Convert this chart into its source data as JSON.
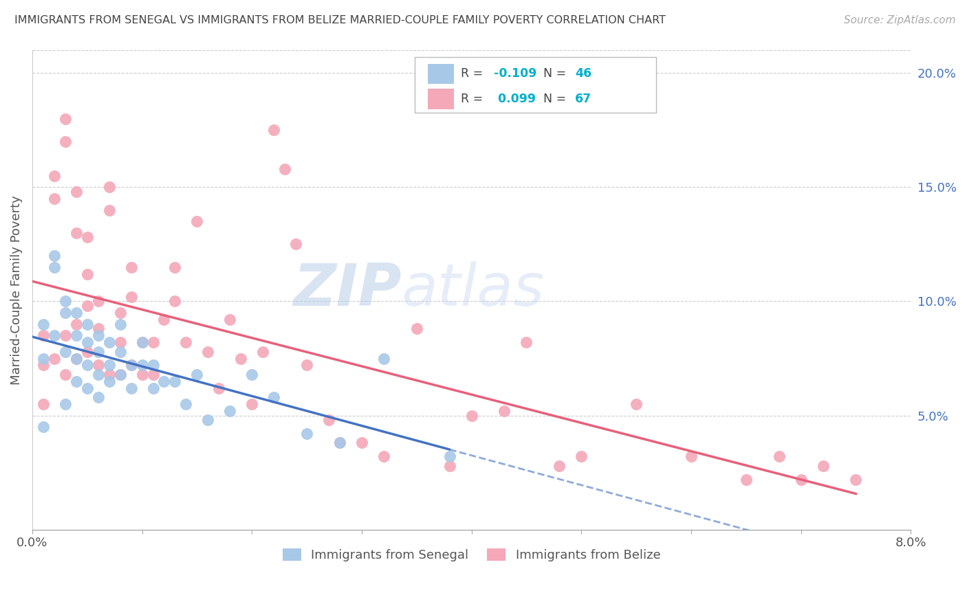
{
  "title": "IMMIGRANTS FROM SENEGAL VS IMMIGRANTS FROM BELIZE MARRIED-COUPLE FAMILY POVERTY CORRELATION CHART",
  "source": "Source: ZipAtlas.com",
  "ylabel": "Married-Couple Family Poverty",
  "xlim": [
    0.0,
    0.08
  ],
  "ylim": [
    0.0,
    0.21
  ],
  "senegal_color": "#a8c8e8",
  "belize_color": "#f4a8b8",
  "senegal_line_color": "#4472c4",
  "belize_line_color": "#e8607a",
  "right_tick_color": "#4472c4",
  "watermark_text": "ZIPatlas",
  "watermark_color": "#ccdcf0",
  "legend_R_color": "#00b0cc",
  "legend_N_color": "#00b0cc",
  "senegal_R": -0.109,
  "senegal_N": 46,
  "belize_R": 0.099,
  "belize_N": 67,
  "senegal_x": [
    0.001,
    0.001,
    0.001,
    0.002,
    0.002,
    0.002,
    0.003,
    0.003,
    0.003,
    0.003,
    0.004,
    0.004,
    0.004,
    0.004,
    0.005,
    0.005,
    0.005,
    0.005,
    0.006,
    0.006,
    0.006,
    0.006,
    0.007,
    0.007,
    0.007,
    0.008,
    0.008,
    0.008,
    0.009,
    0.009,
    0.01,
    0.01,
    0.011,
    0.011,
    0.012,
    0.013,
    0.014,
    0.015,
    0.016,
    0.018,
    0.02,
    0.022,
    0.025,
    0.028,
    0.032,
    0.038
  ],
  "senegal_y": [
    0.09,
    0.075,
    0.045,
    0.12,
    0.115,
    0.085,
    0.1,
    0.095,
    0.078,
    0.055,
    0.095,
    0.085,
    0.075,
    0.065,
    0.09,
    0.082,
    0.072,
    0.062,
    0.085,
    0.078,
    0.068,
    0.058,
    0.082,
    0.072,
    0.065,
    0.09,
    0.078,
    0.068,
    0.072,
    0.062,
    0.082,
    0.072,
    0.072,
    0.062,
    0.065,
    0.065,
    0.055,
    0.068,
    0.048,
    0.052,
    0.068,
    0.058,
    0.042,
    0.038,
    0.075,
    0.032
  ],
  "belize_x": [
    0.001,
    0.001,
    0.001,
    0.002,
    0.002,
    0.002,
    0.003,
    0.003,
    0.003,
    0.003,
    0.004,
    0.004,
    0.004,
    0.004,
    0.005,
    0.005,
    0.005,
    0.005,
    0.006,
    0.006,
    0.006,
    0.007,
    0.007,
    0.007,
    0.008,
    0.008,
    0.008,
    0.009,
    0.009,
    0.009,
    0.01,
    0.01,
    0.011,
    0.011,
    0.012,
    0.013,
    0.013,
    0.014,
    0.015,
    0.016,
    0.017,
    0.018,
    0.019,
    0.02,
    0.021,
    0.022,
    0.023,
    0.024,
    0.025,
    0.027,
    0.028,
    0.03,
    0.032,
    0.035,
    0.038,
    0.04,
    0.043,
    0.045,
    0.048,
    0.05,
    0.055,
    0.06,
    0.065,
    0.068,
    0.07,
    0.072,
    0.075
  ],
  "belize_y": [
    0.085,
    0.072,
    0.055,
    0.155,
    0.145,
    0.075,
    0.18,
    0.17,
    0.085,
    0.068,
    0.148,
    0.13,
    0.09,
    0.075,
    0.128,
    0.112,
    0.098,
    0.078,
    0.1,
    0.088,
    0.072,
    0.15,
    0.14,
    0.068,
    0.095,
    0.082,
    0.068,
    0.115,
    0.102,
    0.072,
    0.082,
    0.068,
    0.082,
    0.068,
    0.092,
    0.115,
    0.1,
    0.082,
    0.135,
    0.078,
    0.062,
    0.092,
    0.075,
    0.055,
    0.078,
    0.175,
    0.158,
    0.125,
    0.072,
    0.048,
    0.038,
    0.038,
    0.032,
    0.088,
    0.028,
    0.05,
    0.052,
    0.082,
    0.028,
    0.032,
    0.055,
    0.032,
    0.022,
    0.032,
    0.022,
    0.028,
    0.022
  ]
}
